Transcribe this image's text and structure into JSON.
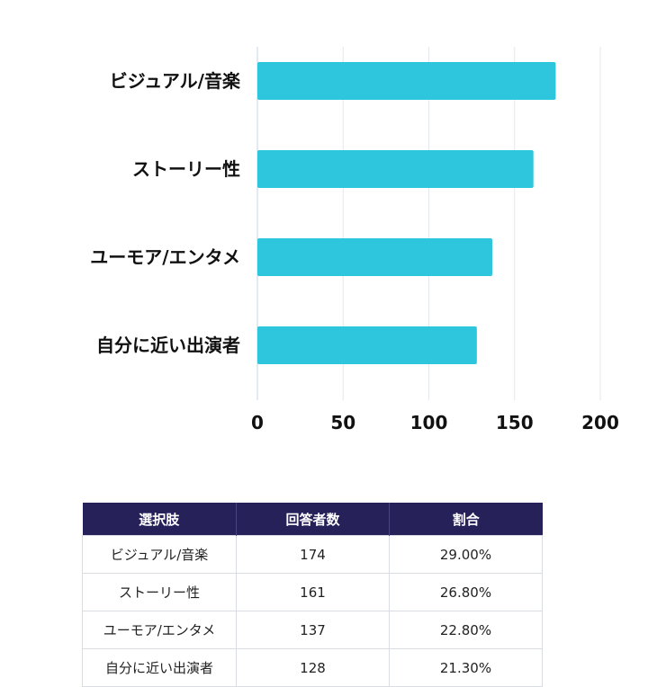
{
  "chart_data": {
    "type": "bar",
    "orientation": "horizontal",
    "categories": [
      "ビジュアル/音楽",
      "ストーリー性",
      "ユーモア/エンタメ",
      "自分に近い出演者"
    ],
    "values": [
      174,
      161,
      137,
      128
    ],
    "xlim": [
      0,
      200
    ],
    "xticks": [
      "0",
      "50",
      "100",
      "150",
      "200"
    ],
    "grid": true,
    "bar_color": "#2ec6dc"
  },
  "table": {
    "headers": [
      "選択肢",
      "回答者数",
      "割合"
    ],
    "rows": [
      [
        "ビジュアル/音楽",
        "174",
        "29.00%"
      ],
      [
        "ストーリー性",
        "161",
        "26.80%"
      ],
      [
        "ユーモア/エンタメ",
        "137",
        "22.80%"
      ],
      [
        "自分に近い出演者",
        "128",
        "21.30%"
      ]
    ],
    "header_color": "#262159"
  }
}
